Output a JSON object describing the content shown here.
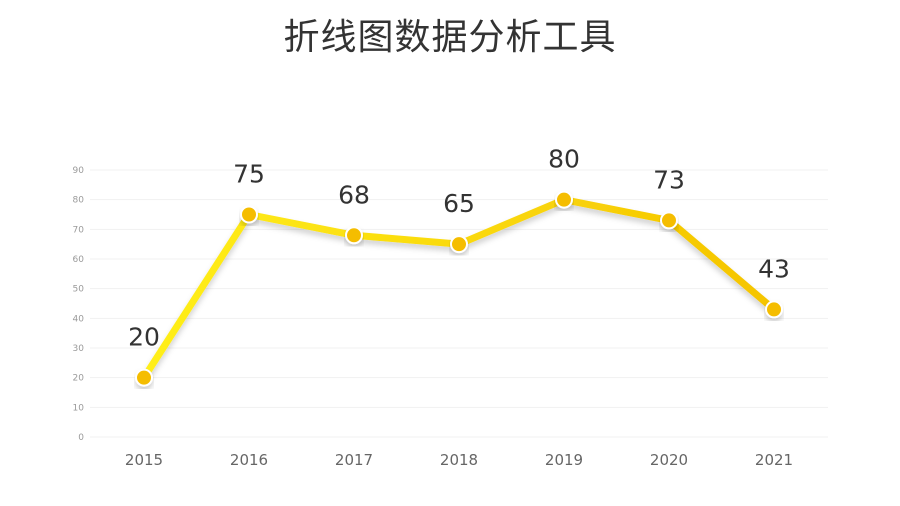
{
  "title": "折线图数据分析工具",
  "colors": {
    "line_start": "#ffef1a",
    "line_end": "#f5c400",
    "marker": "#f5bd00",
    "marker_stroke": "#ffffff",
    "drop_line": "#f7ea9a",
    "grid": "#f1f1f1"
  },
  "chart_data": {
    "type": "line",
    "title": "折线图数据分析工具",
    "categories": [
      "2015",
      "2016",
      "2017",
      "2018",
      "2019",
      "2020",
      "2021"
    ],
    "series": [
      {
        "values": [
          20,
          75,
          68,
          65,
          80,
          73,
          43
        ]
      }
    ],
    "data_labels": [
      "20",
      "75",
      "68",
      "65",
      "80",
      "73",
      "43"
    ],
    "y_ticks": [
      "0",
      "10",
      "20",
      "30",
      "40",
      "50",
      "60",
      "70",
      "80",
      "90"
    ],
    "ylim": [
      0,
      90
    ],
    "grid": true,
    "legend": "none",
    "xlabel": "",
    "ylabel": ""
  }
}
